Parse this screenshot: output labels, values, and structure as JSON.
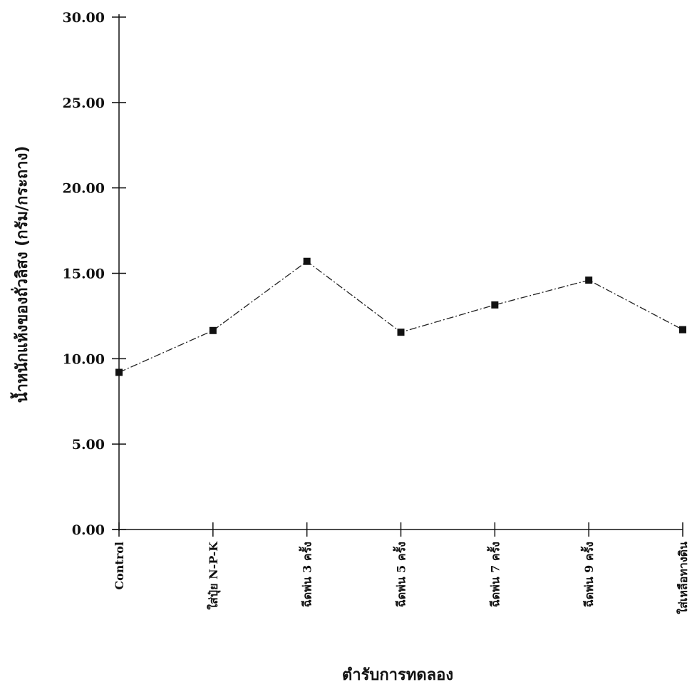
{
  "chart_data": {
    "type": "line",
    "xlabel": "ตำรับการทดลอง",
    "ylabel": "น้ำหนักแห้งของถั่วลิสง (กรัม/กระถาง)",
    "ylim": [
      0,
      30
    ],
    "yticks": [
      "0.00",
      "5.00",
      "10.00",
      "15.00",
      "20.00",
      "25.00",
      "30.00"
    ],
    "yticks_values": [
      0,
      5,
      10,
      15,
      20,
      25,
      30
    ],
    "categories": [
      "Control",
      "ใส่ปุ๋ย N-P-K",
      "ฉีดพ่น 3 ครั้ง",
      "ฉีดพ่น 5 ครั้ง",
      "ฉีดพ่น 7 ครั้ง",
      "ฉีดพ่น 9 ครั้ง",
      "ใส่เหลือทางดิน"
    ],
    "series": [
      {
        "values": [
          9.2,
          11.65,
          15.7,
          11.55,
          13.15,
          14.6,
          11.7
        ]
      }
    ],
    "grid": false,
    "marker": "square"
  }
}
